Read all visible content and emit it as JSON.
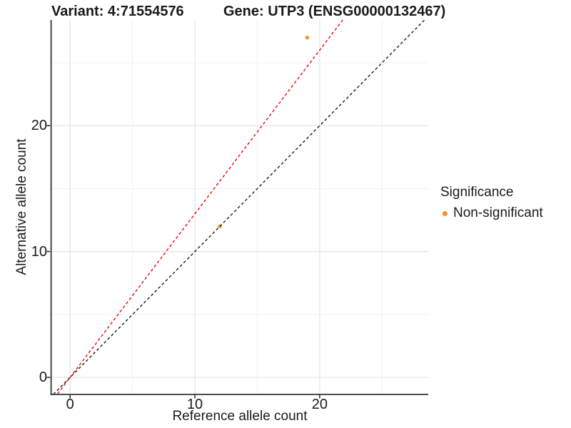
{
  "header": {
    "variant_title": "Variant: 4:71554576",
    "gene_title": "Gene: UTP3 (ENSG00000132467)"
  },
  "axes": {
    "x_label": "Reference allele count",
    "y_label": "Alternative allele count"
  },
  "legend": {
    "title": "Significance",
    "items": [
      {
        "label": "Non-significant",
        "color": "#F79421"
      }
    ]
  },
  "colors": {
    "point": "#F79421",
    "identity_line": "#1A1A1A",
    "ratio_line": "#EE0000",
    "grid_major": "#E3E3E3",
    "grid_minor": "#F1F1F1",
    "axis_line": "#333333",
    "text": "#1A1A1A"
  },
  "chart_data": {
    "type": "scatter",
    "title": "Variant: 4:71554576 | Gene: UTP3 (ENSG00000132467)",
    "xlabel": "Reference allele count",
    "ylabel": "Alternative allele count",
    "xlim": [
      -1.5,
      28.7
    ],
    "ylim": [
      -1.3,
      28.4
    ],
    "x_ticks": [
      0,
      10,
      20
    ],
    "y_ticks": [
      0,
      10,
      20
    ],
    "x_minor": [
      5,
      15,
      25
    ],
    "y_minor": [
      5,
      15,
      25
    ],
    "grid": true,
    "legend_position": "right",
    "series": [
      {
        "name": "Non-significant",
        "color": "#F79421",
        "point_radius": 2.7,
        "points": [
          [
            12,
            12
          ],
          [
            19,
            27
          ]
        ]
      }
    ],
    "lines": [
      {
        "name": "identity y = x",
        "slope": 1.0,
        "intercept": 0,
        "color": "#1A1A1A",
        "style": "dashed"
      },
      {
        "name": "allelic-ratio fit y = 1.30x",
        "slope": 1.3,
        "intercept": 0,
        "color": "#EE0000",
        "style": "dashed"
      }
    ]
  }
}
